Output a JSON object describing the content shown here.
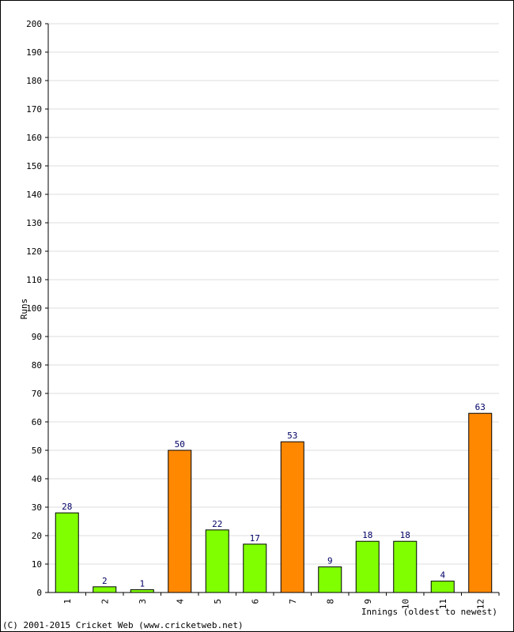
{
  "chart_data": {
    "type": "bar",
    "title": "",
    "xlabel": "Innings (oldest to newest)",
    "ylabel": "Runs",
    "ylim": [
      0,
      200
    ],
    "ytick_step": 10,
    "grid": true,
    "categories": [
      "1",
      "2",
      "3",
      "4",
      "5",
      "6",
      "7",
      "8",
      "9",
      "10",
      "11",
      "12"
    ],
    "values": [
      28,
      2,
      1,
      50,
      22,
      17,
      53,
      9,
      18,
      18,
      4,
      63
    ],
    "highlight": [
      false,
      false,
      false,
      true,
      false,
      false,
      true,
      false,
      false,
      false,
      false,
      true
    ],
    "colors": {
      "normal": "#80ff00",
      "highlight": "#ff8800",
      "data_label": "#000066",
      "grid": "#dddddd"
    }
  },
  "footer": {
    "copyright": "(C) 2001-2015 Cricket Web (www.cricketweb.net)"
  }
}
